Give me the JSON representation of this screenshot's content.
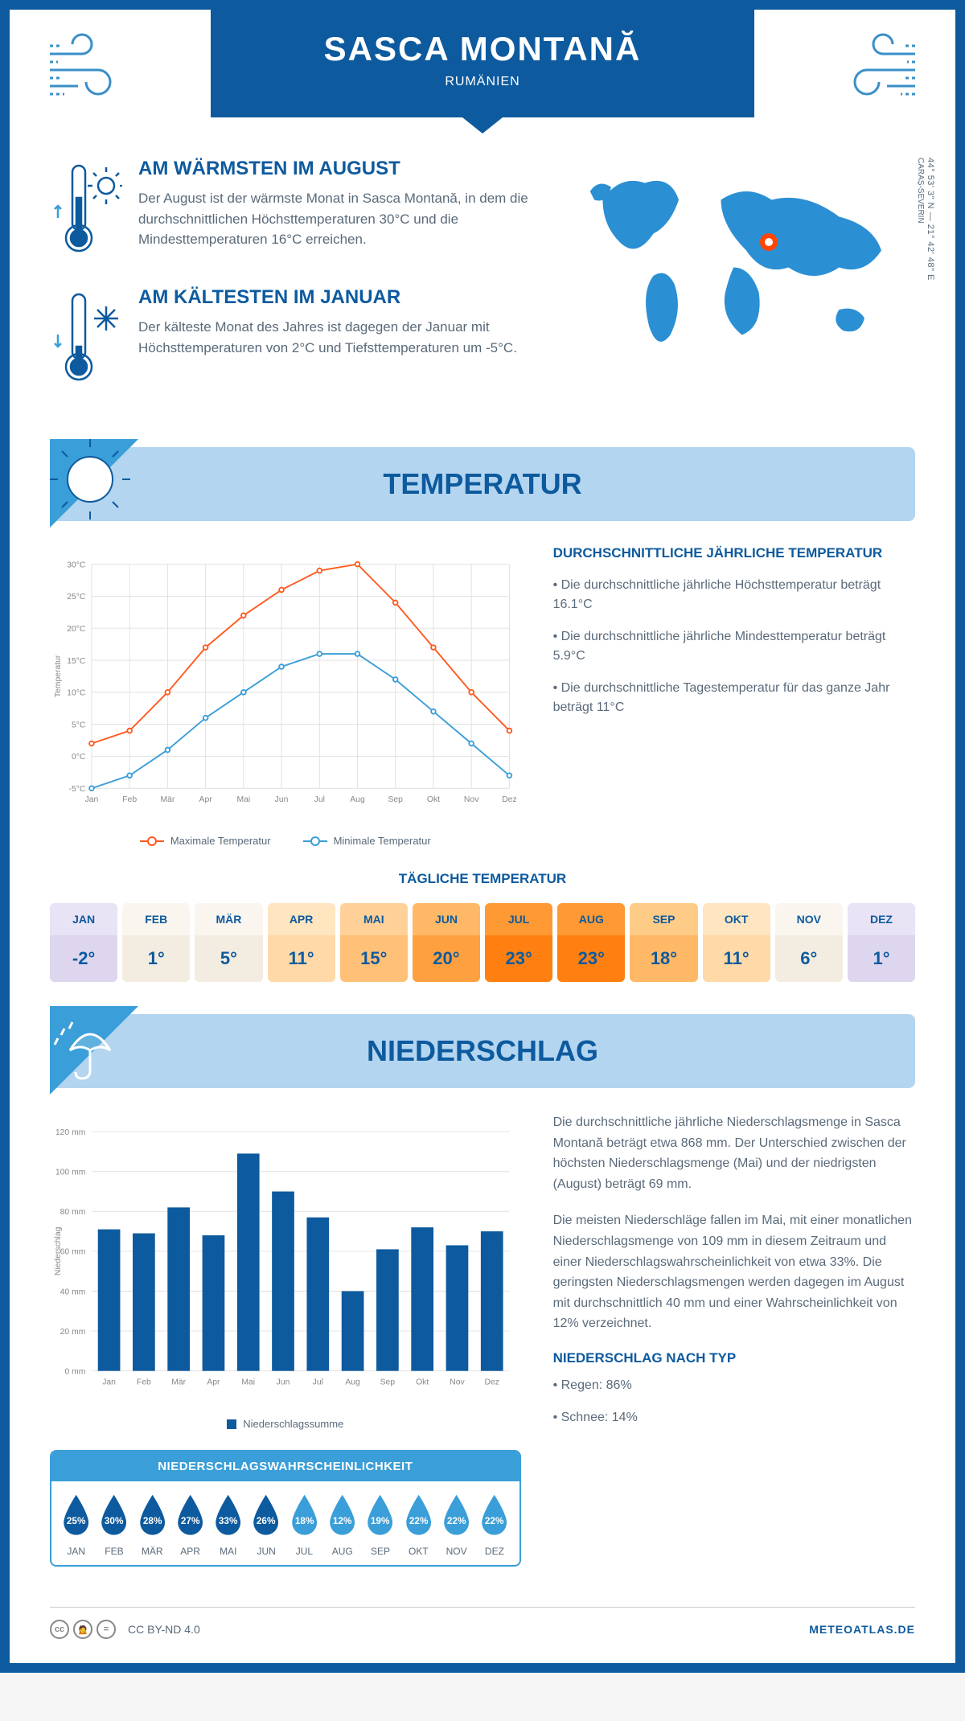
{
  "header": {
    "title": "SASCA MONTANĂ",
    "subtitle": "RUMÄNIEN",
    "region": "CARAȘ-SEVERIN",
    "coords": "44° 53' 3\" N — 21° 42' 48\" E"
  },
  "warm": {
    "title": "AM WÄRMSTEN IM AUGUST",
    "desc": "Der August ist der wärmste Monat in Sasca Montană, in dem die durchschnittlichen Höchsttemperaturen 30°C und die Mindesttemperaturen 16°C erreichen."
  },
  "cold": {
    "title": "AM KÄLTESTEN IM JANUAR",
    "desc": "Der kälteste Monat des Jahres ist dagegen der Januar mit Höchsttemperaturen von 2°C und Tiefsttemperaturen um -5°C."
  },
  "temperature_section": {
    "title": "TEMPERATUR",
    "side_title": "DURCHSCHNITTLICHE JÄHRLICHE TEMPERATUR",
    "bullets": [
      "• Die durchschnittliche jährliche Höchsttemperatur beträgt 16.1°C",
      "• Die durchschnittliche jährliche Mindesttemperatur beträgt 5.9°C",
      "• Die durchschnittliche Tagestemperatur für das ganze Jahr beträgt 11°C"
    ]
  },
  "temp_chart": {
    "type": "line",
    "x_labels": [
      "Jan",
      "Feb",
      "Mär",
      "Apr",
      "Mai",
      "Jun",
      "Jul",
      "Aug",
      "Sep",
      "Okt",
      "Nov",
      "Dez"
    ],
    "y_min": -5,
    "y_max": 30,
    "y_step": 5,
    "y_suffix": "°C",
    "y_axis_title": "Temperatur",
    "series": [
      {
        "name": "Maximale Temperatur",
        "color": "#ff5a1f",
        "values": [
          2,
          4,
          10,
          17,
          22,
          26,
          29,
          30,
          24,
          17,
          10,
          4
        ]
      },
      {
        "name": "Minimale Temperatur",
        "color": "#3a9ed8",
        "values": [
          -5,
          -3,
          1,
          6,
          10,
          14,
          16,
          16,
          12,
          7,
          2,
          -3
        ]
      }
    ],
    "grid_color": "#e0e0e0",
    "background": "#ffffff",
    "line_width": 2,
    "marker_radius": 3
  },
  "daily_temp": {
    "title": "TÄGLICHE TEMPERATUR",
    "months": [
      "JAN",
      "FEB",
      "MÄR",
      "APR",
      "MAI",
      "JUN",
      "JUL",
      "AUG",
      "SEP",
      "OKT",
      "NOV",
      "DEZ"
    ],
    "values": [
      "-2°",
      "1°",
      "5°",
      "11°",
      "15°",
      "20°",
      "23°",
      "23°",
      "18°",
      "11°",
      "6°",
      "1°"
    ],
    "bg_top": [
      "#e8e3f5",
      "#faf5ef",
      "#faf5ef",
      "#ffe5c0",
      "#ffd199",
      "#ffb866",
      "#ff9933",
      "#ff9933",
      "#ffcc88",
      "#ffe5c0",
      "#faf5ef",
      "#e8e3f5"
    ],
    "bg_bot": [
      "#ddd6ee",
      "#f3ece0",
      "#f3ece0",
      "#ffd9a8",
      "#ffc178",
      "#ffa040",
      "#ff8010",
      "#ff8010",
      "#ffb866",
      "#ffd9a8",
      "#f3ece0",
      "#ddd6ee"
    ]
  },
  "precip_section": {
    "title": "NIEDERSCHLAG",
    "desc1": "Die durchschnittliche jährliche Niederschlagsmenge in Sasca Montană beträgt etwa 868 mm. Der Unterschied zwischen der höchsten Niederschlagsmenge (Mai) und der niedrigsten (August) beträgt 69 mm.",
    "desc2": "Die meisten Niederschläge fallen im Mai, mit einer monatlichen Niederschlagsmenge von 109 mm in diesem Zeitraum und einer Niederschlagswahrscheinlichkeit von etwa 33%. Die geringsten Niederschlagsmengen werden dagegen im August mit durchschnittlich 40 mm und einer Wahrscheinlichkeit von 12% verzeichnet.",
    "type_title": "NIEDERSCHLAG NACH TYP",
    "type_bullets": [
      "• Regen: 86%",
      "• Schnee: 14%"
    ]
  },
  "precip_chart": {
    "type": "bar",
    "x_labels": [
      "Jan",
      "Feb",
      "Mär",
      "Apr",
      "Mai",
      "Jun",
      "Jul",
      "Aug",
      "Sep",
      "Okt",
      "Nov",
      "Dez"
    ],
    "y_min": 0,
    "y_max": 120,
    "y_step": 20,
    "y_suffix": " mm",
    "y_axis_title": "Niederschlag",
    "values": [
      71,
      69,
      82,
      68,
      109,
      90,
      77,
      40,
      61,
      72,
      63,
      70
    ],
    "bar_color": "#0d5a9e",
    "legend": "Niederschlagssumme",
    "grid_color": "#e0e0e0"
  },
  "precip_prob": {
    "title": "NIEDERSCHLAGSWAHRSCHEINLICHKEIT",
    "months": [
      "JAN",
      "FEB",
      "MÄR",
      "APR",
      "MAI",
      "JUN",
      "JUL",
      "AUG",
      "SEP",
      "OKT",
      "NOV",
      "DEZ"
    ],
    "values": [
      "25%",
      "30%",
      "28%",
      "27%",
      "33%",
      "26%",
      "18%",
      "12%",
      "19%",
      "22%",
      "22%",
      "22%"
    ],
    "colors": [
      "#0d5a9e",
      "#0d5a9e",
      "#0d5a9e",
      "#0d5a9e",
      "#0d5a9e",
      "#0d5a9e",
      "#3a9ed8",
      "#3a9ed8",
      "#3a9ed8",
      "#3a9ed8",
      "#3a9ed8",
      "#3a9ed8"
    ]
  },
  "footer": {
    "license": "CC BY-ND 4.0",
    "brand": "METEOATLAS.DE"
  }
}
